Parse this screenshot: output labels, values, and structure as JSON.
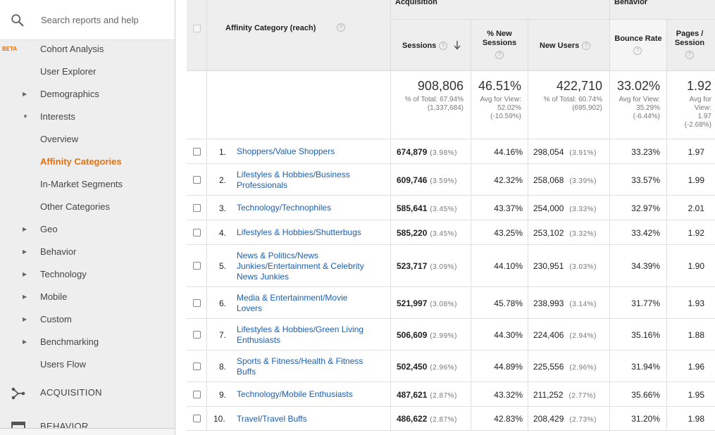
{
  "search": {
    "placeholder": "Search reports and help"
  },
  "sidebar": {
    "items": [
      {
        "label": "Cohort Analysis",
        "badge": "BETA",
        "caret": "",
        "active": false
      },
      {
        "label": "User Explorer",
        "caret": "",
        "active": false
      },
      {
        "label": "Demographics",
        "caret": "▶",
        "active": false
      },
      {
        "label": "Interests",
        "caret": "▼",
        "active": false
      },
      {
        "label": "Overview",
        "caret": "",
        "active": false
      },
      {
        "label": "Affinity Categories",
        "caret": "",
        "active": true
      },
      {
        "label": "In-Market Segments",
        "caret": "",
        "active": false
      },
      {
        "label": "Other Categories",
        "caret": "",
        "active": false
      },
      {
        "label": "Geo",
        "caret": "▶",
        "active": false
      },
      {
        "label": "Behavior",
        "caret": "▶",
        "active": false
      },
      {
        "label": "Technology",
        "caret": "▶",
        "active": false
      },
      {
        "label": "Mobile",
        "caret": "▶",
        "active": false
      },
      {
        "label": "Custom",
        "caret": "▶",
        "active": false
      },
      {
        "label": "Benchmarking",
        "caret": "▶",
        "active": false
      },
      {
        "label": "Users Flow",
        "caret": "",
        "active": false
      }
    ],
    "sections": [
      {
        "label": "ACQUISITION",
        "icon": "acquisition-icon"
      },
      {
        "label": "BEHAVIOR",
        "icon": "behavior-icon"
      }
    ],
    "accent_color": "#e8710a"
  },
  "table": {
    "groups": {
      "acquisition": "Acquisition",
      "behavior": "Behavior"
    },
    "dimension_header": "Affinity Category (reach)",
    "columns": {
      "sessions": "Sessions",
      "new_sessions": "% New Sessions",
      "new_users": "New Users",
      "bounce_rate": "Bounce Rate",
      "pages_session": "Pages / Session"
    },
    "totals": {
      "sessions": {
        "value": "908,806",
        "sub1": "% of Total: 67.94%",
        "sub2": "(1,337,684)"
      },
      "new_sessions": {
        "value": "46.51%",
        "sub1": "Avg for View:",
        "sub2": "52.02%",
        "sub3": "(-10.59%)"
      },
      "new_users": {
        "value": "422,710",
        "sub1": "% of Total: 60.74%",
        "sub2": "(695,902)"
      },
      "bounce_rate": {
        "value": "33.02%",
        "sub1": "Avg for View:",
        "sub2": "35.29%",
        "sub3": "(-6.44%)"
      },
      "pages_session": {
        "value": "1.92",
        "sub1": "Avg for",
        "sub2": "View:",
        "sub3": "1.97",
        "sub4": "(-2.68%)"
      }
    },
    "rows": [
      {
        "n": "1.",
        "lines": [
          "Shoppers/Value Shoppers"
        ],
        "sessions": "674,879",
        "sessions_pct": "(3.98%)",
        "new_sessions": "44.16%",
        "new_users": "298,054",
        "new_users_pct": "(3.91%)",
        "bounce": "33.23%",
        "pages": "1.97"
      },
      {
        "n": "2.",
        "lines": [
          "Lifestyles & Hobbies/Business",
          "Professionals"
        ],
        "sessions": "609,746",
        "sessions_pct": "(3.59%)",
        "new_sessions": "42.32%",
        "new_users": "258,068",
        "new_users_pct": "(3.39%)",
        "bounce": "33.57%",
        "pages": "1.99"
      },
      {
        "n": "3.",
        "lines": [
          "Technology/Technophiles"
        ],
        "sessions": "585,641",
        "sessions_pct": "(3.45%)",
        "new_sessions": "43.37%",
        "new_users": "254,000",
        "new_users_pct": "(3.33%)",
        "bounce": "32.97%",
        "pages": "2.01"
      },
      {
        "n": "4.",
        "lines": [
          "Lifestyles & Hobbies/Shutterbugs"
        ],
        "sessions": "585,220",
        "sessions_pct": "(3.45%)",
        "new_sessions": "43.25%",
        "new_users": "253,102",
        "new_users_pct": "(3.32%)",
        "bounce": "33.42%",
        "pages": "1.92"
      },
      {
        "n": "5.",
        "lines": [
          "News & Politics/News",
          "Junkies/Entertainment & Celebrity",
          "News Junkies"
        ],
        "sessions": "523,717",
        "sessions_pct": "(3.09%)",
        "new_sessions": "44.10%",
        "new_users": "230,951",
        "new_users_pct": "(3.03%)",
        "bounce": "34.39%",
        "pages": "1.90"
      },
      {
        "n": "6.",
        "lines": [
          "Media & Entertainment/Movie",
          "Lovers"
        ],
        "sessions": "521,997",
        "sessions_pct": "(3.08%)",
        "new_sessions": "45.78%",
        "new_users": "238,993",
        "new_users_pct": "(3.14%)",
        "bounce": "31.77%",
        "pages": "1.93"
      },
      {
        "n": "7.",
        "lines": [
          "Lifestyles & Hobbies/Green Living",
          "Enthusiasts"
        ],
        "sessions": "506,609",
        "sessions_pct": "(2.99%)",
        "new_sessions": "44.30%",
        "new_users": "224,406",
        "new_users_pct": "(2.94%)",
        "bounce": "35.16%",
        "pages": "1.88"
      },
      {
        "n": "8.",
        "lines": [
          "Sports & Fitness/Health & Fitness",
          "Buffs"
        ],
        "sessions": "502,450",
        "sessions_pct": "(2.96%)",
        "new_sessions": "44.89%",
        "new_users": "225,556",
        "new_users_pct": "(2.96%)",
        "bounce": "31.94%",
        "pages": "1.96"
      },
      {
        "n": "9.",
        "lines": [
          "Technology/Mobile Enthusiasts"
        ],
        "sessions": "487,621",
        "sessions_pct": "(2.87%)",
        "new_sessions": "43.32%",
        "new_users": "211,252",
        "new_users_pct": "(2.77%)",
        "bounce": "35.66%",
        "pages": "1.95"
      },
      {
        "n": "10.",
        "lines": [
          "Travel/Travel Buffs"
        ],
        "sessions": "486,622",
        "sessions_pct": "(2.87%)",
        "new_sessions": "42.83%",
        "new_users": "208,429",
        "new_users_pct": "(2.73%)",
        "bounce": "31.20%",
        "pages": "1.98"
      }
    ],
    "link_color": "#1a5fb4"
  }
}
